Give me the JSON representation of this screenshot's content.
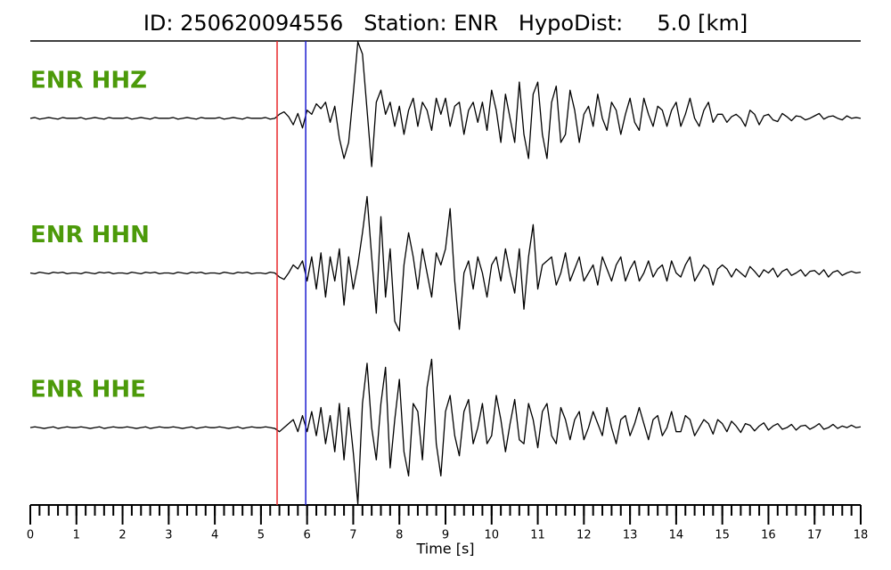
{
  "chart_data": {
    "type": "seismogram",
    "title": "ID: 250620094556   Station: ENR   HypoDist:     5.0 [km]",
    "xlabel": "Time [s]",
    "xlim": [
      0,
      18
    ],
    "xticks": [
      0,
      1,
      2,
      3,
      4,
      5,
      6,
      7,
      8,
      9,
      10,
      11,
      12,
      13,
      14,
      15,
      16,
      17,
      18
    ],
    "xminor": 0.2,
    "ylim": [
      -1,
      1
    ],
    "picks": [
      {
        "value": 5.35,
        "color": "#e8282b"
      },
      {
        "value": 5.97,
        "color": "#1c1cd0"
      }
    ],
    "label_color": "#4c9a0a",
    "x": [
      0,
      0.1,
      0.2,
      0.3,
      0.4,
      0.5,
      0.6,
      0.7,
      0.8,
      0.9,
      1,
      1.1,
      1.2,
      1.3,
      1.4,
      1.5,
      1.6,
      1.7,
      1.8,
      1.9,
      2,
      2.1,
      2.2,
      2.3,
      2.4,
      2.5,
      2.6,
      2.7,
      2.8,
      2.9,
      3,
      3.1,
      3.2,
      3.3,
      3.4,
      3.5,
      3.6,
      3.7,
      3.8,
      3.9,
      4,
      4.1,
      4.2,
      4.3,
      4.4,
      4.5,
      4.6,
      4.7,
      4.8,
      4.9,
      5,
      5.1,
      5.2,
      5.3,
      5.4,
      5.5,
      5.6,
      5.7,
      5.8,
      5.9,
      6,
      6.1,
      6.2,
      6.3,
      6.4,
      6.5,
      6.6,
      6.7,
      6.8,
      6.9,
      7,
      7.1,
      7.2,
      7.3,
      7.4,
      7.5,
      7.6,
      7.7,
      7.8,
      7.9,
      8,
      8.1,
      8.2,
      8.3,
      8.4,
      8.5,
      8.6,
      8.7,
      8.8,
      8.9,
      9,
      9.1,
      9.2,
      9.3,
      9.4,
      9.5,
      9.6,
      9.7,
      9.8,
      9.9,
      10,
      10.1,
      10.2,
      10.3,
      10.4,
      10.5,
      10.6,
      10.7,
      10.8,
      10.9,
      11,
      11.1,
      11.2,
      11.3,
      11.4,
      11.5,
      11.6,
      11.7,
      11.8,
      11.9,
      12,
      12.1,
      12.2,
      12.3,
      12.4,
      12.5,
      12.6,
      12.7,
      12.8,
      12.9,
      13,
      13.1,
      13.2,
      13.3,
      13.4,
      13.5,
      13.6,
      13.7,
      13.8,
      13.9,
      14,
      14.1,
      14.2,
      14.3,
      14.4,
      14.5,
      14.6,
      14.7,
      14.8,
      14.9,
      15,
      15.1,
      15.2,
      15.3,
      15.4,
      15.5,
      15.6,
      15.7,
      15.8,
      15.9,
      16,
      16.1,
      16.2,
      16.3,
      16.4,
      16.5,
      16.6,
      16.7,
      16.8,
      16.9,
      17,
      17.1,
      17.2,
      17.3,
      17.4,
      17.5,
      17.6,
      17.7,
      17.8,
      17.9,
      18
    ],
    "series": [
      {
        "name": "ENR HHZ",
        "color": "#000000",
        "values": [
          0,
          0.01,
          -0.01,
          0,
          0.01,
          0,
          -0.01,
          0.01,
          0,
          0,
          0,
          0.01,
          -0.01,
          0,
          0.01,
          0,
          -0.01,
          0.01,
          0,
          0,
          0,
          0.01,
          -0.01,
          0,
          0.01,
          0,
          -0.01,
          0.01,
          0,
          0,
          0,
          0.01,
          -0.01,
          0,
          0.01,
          0,
          -0.01,
          0.01,
          0,
          0,
          0,
          0.01,
          -0.01,
          0,
          0.01,
          0,
          -0.01,
          0.01,
          0,
          0,
          0,
          0.01,
          -0.01,
          0,
          0.05,
          0.08,
          0.02,
          -0.08,
          0.06,
          -0.12,
          0.1,
          0.05,
          0.18,
          0.12,
          0.2,
          -0.05,
          0.15,
          -0.25,
          -0.5,
          -0.3,
          0.3,
          0.95,
          0.8,
          0.1,
          -0.6,
          0.2,
          0.35,
          0.05,
          0.2,
          -0.1,
          0.15,
          -0.2,
          0.1,
          0.25,
          -0.1,
          0.2,
          0.1,
          -0.15,
          0.25,
          0.05,
          0.25,
          -0.1,
          0.15,
          0.2,
          -0.2,
          0.1,
          0.2,
          -0.05,
          0.2,
          -0.15,
          0.35,
          0.1,
          -0.3,
          0.3,
          0,
          -0.3,
          0.45,
          -0.2,
          -0.5,
          0.3,
          0.45,
          -0.2,
          -0.5,
          0.2,
          0.4,
          -0.3,
          -0.2,
          0.35,
          0.1,
          -0.3,
          0.05,
          0.15,
          -0.1,
          0.3,
          0,
          -0.15,
          0.2,
          0.1,
          -0.2,
          0.05,
          0.25,
          -0.05,
          -0.15,
          0.25,
          0.05,
          -0.1,
          0.15,
          0.1,
          -0.1,
          0.1,
          0.2,
          -0.1,
          0.05,
          0.25,
          0,
          -0.1,
          0.1,
          0.2,
          -0.05,
          0.05,
          0.05,
          -0.05,
          0.02,
          0.05,
          0,
          -0.1,
          0.1,
          0.05,
          -0.08,
          0.03,
          0.05,
          -0.02,
          -0.04,
          0.06,
          0.02,
          -0.03,
          0.03,
          0.02,
          -0.02,
          0,
          0.03,
          0.06,
          -0.01,
          0.02,
          0.03,
          0,
          -0.02,
          0.03,
          0,
          0.01,
          0
        ]
      },
      {
        "name": "ENR HHN",
        "color": "#000000",
        "values": [
          0,
          -0.01,
          0.01,
          0,
          -0.01,
          0.01,
          0,
          0.01,
          -0.01,
          0,
          0,
          -0.01,
          0.01,
          0,
          -0.01,
          0.01,
          0,
          0.01,
          -0.01,
          0,
          0,
          -0.01,
          0.01,
          0,
          -0.01,
          0.01,
          0,
          0.01,
          -0.01,
          0,
          0,
          -0.01,
          0.01,
          0,
          -0.01,
          0.01,
          0,
          0.01,
          -0.01,
          0,
          0,
          -0.01,
          0.01,
          0,
          -0.01,
          0.01,
          0,
          0.01,
          -0.01,
          0,
          0,
          -0.01,
          0.01,
          0,
          -0.05,
          -0.08,
          0,
          0.1,
          0.05,
          0.15,
          -0.1,
          0.2,
          -0.2,
          0.25,
          -0.3,
          0.2,
          -0.1,
          0.3,
          -0.4,
          0.2,
          -0.2,
          0.1,
          0.5,
          0.95,
          0.2,
          -0.5,
          0.7,
          -0.3,
          0.3,
          -0.6,
          -0.72,
          0.1,
          0.5,
          0.2,
          -0.2,
          0.3,
          0,
          -0.3,
          0.25,
          0.1,
          0.3,
          0.8,
          -0.1,
          -0.7,
          0,
          0.15,
          -0.2,
          0.2,
          0,
          -0.3,
          0.1,
          0.2,
          -0.1,
          0.3,
          0,
          -0.25,
          0.3,
          -0.45,
          0.2,
          0.6,
          -0.2,
          0.1,
          0.15,
          0.2,
          -0.15,
          0,
          0.25,
          -0.1,
          0.05,
          0.2,
          -0.1,
          0,
          0.1,
          -0.15,
          0.2,
          0.05,
          -0.1,
          0.1,
          0.2,
          -0.1,
          0.05,
          0.15,
          -0.1,
          0,
          0.15,
          -0.05,
          0.05,
          0.1,
          -0.1,
          0.15,
          0,
          -0.05,
          0.1,
          0.2,
          -0.1,
          0,
          0.1,
          0.05,
          -0.15,
          0.05,
          0.1,
          0.05,
          -0.05,
          0.05,
          0,
          -0.05,
          0.08,
          0.02,
          -0.05,
          0.04,
          0,
          0.06,
          -0.05,
          0.02,
          0.05,
          -0.03,
          0,
          0.04,
          -0.04,
          0.02,
          0.03,
          -0.02,
          0.04,
          -0.05,
          0.01,
          0.03,
          -0.03,
          0,
          0.02,
          0,
          0.01
        ]
      },
      {
        "name": "ENR HHE",
        "color": "#000000",
        "values": [
          0,
          0.01,
          0,
          -0.01,
          0,
          0.01,
          -0.01,
          0,
          0.01,
          0,
          0,
          0.01,
          0,
          -0.01,
          0,
          0.01,
          -0.01,
          0,
          0.01,
          0,
          0,
          0.01,
          0,
          -0.01,
          0,
          0.01,
          -0.01,
          0,
          0.01,
          0,
          0,
          0.01,
          0,
          -0.01,
          0,
          0.01,
          -0.01,
          0,
          0.01,
          0,
          0,
          0.01,
          0,
          -0.01,
          0,
          0.01,
          -0.01,
          0,
          0.01,
          0,
          0,
          0.01,
          0,
          -0.01,
          -0.05,
          0,
          0.05,
          0.1,
          -0.05,
          0.15,
          -0.05,
          0.2,
          -0.1,
          0.25,
          -0.2,
          0.15,
          -0.3,
          0.3,
          -0.4,
          0.25,
          -0.3,
          -0.95,
          0.3,
          0.8,
          0,
          -0.4,
          0.3,
          0.75,
          -0.5,
          0.1,
          0.6,
          -0.3,
          -0.6,
          0.3,
          0.2,
          -0.4,
          0.5,
          0.85,
          -0.2,
          -0.6,
          0.2,
          0.4,
          -0.1,
          -0.35,
          0.2,
          0.35,
          -0.2,
          0,
          0.3,
          -0.2,
          -0.1,
          0.4,
          0.1,
          -0.3,
          0.05,
          0.35,
          -0.15,
          -0.2,
          0.3,
          0.1,
          -0.25,
          0.2,
          0.3,
          -0.1,
          -0.2,
          0.25,
          0.1,
          -0.15,
          0.1,
          0.2,
          -0.15,
          0,
          0.2,
          0.05,
          -0.1,
          0.25,
          0,
          -0.2,
          0.1,
          0.15,
          -0.1,
          0.05,
          0.25,
          0.05,
          -0.15,
          0.1,
          0.15,
          -0.1,
          0,
          0.2,
          -0.05,
          -0.05,
          0.15,
          0.1,
          -0.1,
          0,
          0.1,
          0.05,
          -0.08,
          0.1,
          0.05,
          -0.05,
          0.08,
          0.02,
          -0.06,
          0.05,
          0.03,
          -0.04,
          0.02,
          0.06,
          -0.03,
          0.02,
          0.05,
          -0.02,
          0,
          0.04,
          -0.03,
          0.02,
          0.03,
          -0.02,
          0.01,
          0.05,
          -0.02,
          0,
          0.04,
          -0.01,
          0.02,
          0,
          0.03,
          0,
          0.01
        ]
      }
    ]
  }
}
